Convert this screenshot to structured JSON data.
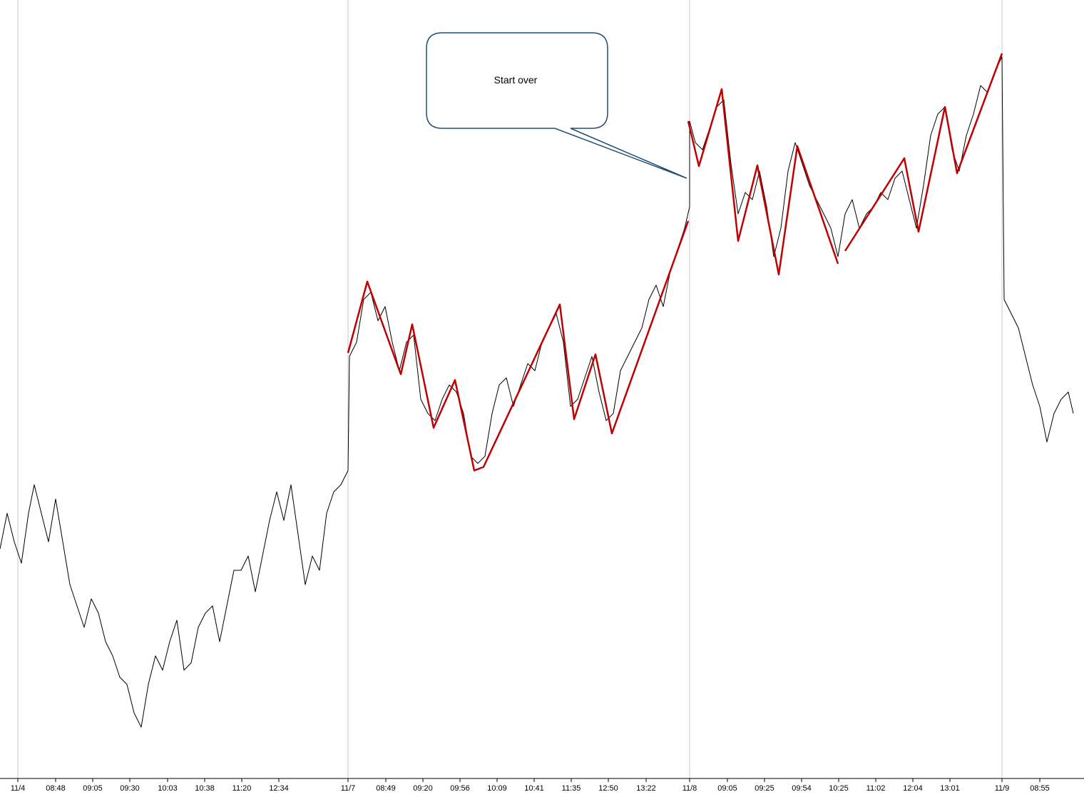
{
  "chart_data": {
    "type": "line",
    "annotation": "Start over",
    "xlim": [
      0,
      1520
    ],
    "ylim": [
      0,
      1090
    ],
    "grid": true,
    "xticks": [
      {
        "value": 25,
        "label": "11/4"
      },
      {
        "value": 78,
        "label": "08:48"
      },
      {
        "value": 130,
        "label": "09:05"
      },
      {
        "value": 182,
        "label": "09:30"
      },
      {
        "value": 235,
        "label": "10:03"
      },
      {
        "value": 287,
        "label": "10:38"
      },
      {
        "value": 339,
        "label": "11:20"
      },
      {
        "value": 391,
        "label": "12:34"
      },
      {
        "value": 488,
        "label": "11/7"
      },
      {
        "value": 541,
        "label": "08:49"
      },
      {
        "value": 593,
        "label": "09:20"
      },
      {
        "value": 645,
        "label": "09:56"
      },
      {
        "value": 697,
        "label": "10:09"
      },
      {
        "value": 749,
        "label": "10:41"
      },
      {
        "value": 801,
        "label": "11:35"
      },
      {
        "value": 853,
        "label": "12:50"
      },
      {
        "value": 906,
        "label": "13:22"
      },
      {
        "value": 967,
        "label": "11/8"
      },
      {
        "value": 1020,
        "label": "09:05"
      },
      {
        "value": 1072,
        "label": "09:25"
      },
      {
        "value": 1124,
        "label": "09:54"
      },
      {
        "value": 1176,
        "label": "10:25"
      },
      {
        "value": 1228,
        "label": "11:02"
      },
      {
        "value": 1280,
        "label": "12:04"
      },
      {
        "value": 1332,
        "label": "13:01"
      },
      {
        "value": 1405,
        "label": "11/9"
      },
      {
        "value": 1458,
        "label": "08:55"
      }
    ],
    "series": [
      {
        "color": "#000000",
        "x": [
          0,
          10,
          20,
          30,
          40,
          48,
          58,
          68,
          78,
          88,
          98,
          108,
          118,
          128,
          138,
          148,
          158,
          168,
          178,
          188,
          198,
          208,
          218,
          228,
          238,
          248,
          258,
          268,
          278,
          288,
          298,
          308,
          318,
          328,
          338,
          348,
          358,
          368,
          378,
          388,
          398,
          408,
          418,
          428,
          438,
          448,
          458,
          468,
          478,
          488,
          490,
          500,
          510,
          520,
          530,
          540,
          550,
          560,
          570,
          580,
          590,
          600,
          610,
          620,
          630,
          640,
          650,
          660,
          670,
          680,
          690,
          700,
          710,
          720,
          730,
          740,
          750,
          760,
          770,
          780,
          790,
          800,
          810,
          820,
          830,
          840,
          850,
          860,
          870,
          880,
          890,
          900,
          910,
          920,
          930,
          940,
          950,
          960,
          967,
          967,
          975,
          985,
          995,
          1005,
          1015,
          1025,
          1035,
          1045,
          1055,
          1065,
          1075,
          1085,
          1095,
          1105,
          1115,
          1125,
          1135,
          1145,
          1155,
          1165,
          1175,
          1185,
          1195,
          1205,
          1215,
          1225,
          1235,
          1245,
          1255,
          1265,
          1275,
          1285,
          1295,
          1305,
          1315,
          1325,
          1335,
          1345,
          1355,
          1365,
          1375,
          1385,
          1395,
          1405,
          1408,
          1418,
          1428,
          1438,
          1448,
          1458,
          1468,
          1478,
          1488,
          1498,
          1505
        ],
        "values": [
          320,
          370,
          330,
          300,
          370,
          410,
          370,
          330,
          390,
          330,
          270,
          240,
          210,
          250,
          230,
          190,
          170,
          140,
          130,
          90,
          70,
          130,
          170,
          150,
          190,
          220,
          150,
          160,
          210,
          230,
          240,
          190,
          240,
          290,
          290,
          310,
          260,
          310,
          360,
          400,
          360,
          410,
          340,
          270,
          310,
          290,
          370,
          400,
          410,
          430,
          590,
          610,
          670,
          680,
          640,
          660,
          610,
          570,
          610,
          620,
          530,
          510,
          500,
          530,
          550,
          540,
          510,
          450,
          440,
          450,
          510,
          550,
          560,
          520,
          550,
          580,
          570,
          610,
          630,
          650,
          610,
          520,
          530,
          560,
          590,
          540,
          500,
          510,
          570,
          590,
          610,
          630,
          670,
          690,
          660,
          710,
          740,
          770,
          800,
          920,
          890,
          880,
          910,
          940,
          950,
          860,
          790,
          820,
          810,
          850,
          800,
          730,
          770,
          850,
          890,
          860,
          830,
          810,
          790,
          770,
          730,
          790,
          810,
          770,
          790,
          800,
          820,
          810,
          840,
          850,
          810,
          770,
          830,
          900,
          930,
          940,
          880,
          850,
          900,
          930,
          970,
          960,
          990,
          1010,
          670,
          650,
          630,
          590,
          550,
          520,
          470,
          510,
          530,
          540,
          510
        ]
      },
      {
        "color": "#c00000",
        "x": [
          488,
          515,
          562,
          578,
          608,
          638,
          665,
          678,
          785,
          805,
          835,
          858,
          965,
          null,
          965,
          980,
          1012,
          1035,
          1062,
          1092,
          1118,
          1175,
          null,
          1185,
          1268,
          1288,
          1325,
          1342,
          1405
        ],
        "values": [
          595,
          695,
          565,
          635,
          490,
          557,
          430,
          435,
          663,
          502,
          593,
          482,
          780,
          null,
          920,
          857,
          965,
          752,
          858,
          705,
          885,
          720,
          null,
          738,
          868,
          765,
          940,
          847,
          1015
        ]
      }
    ]
  }
}
